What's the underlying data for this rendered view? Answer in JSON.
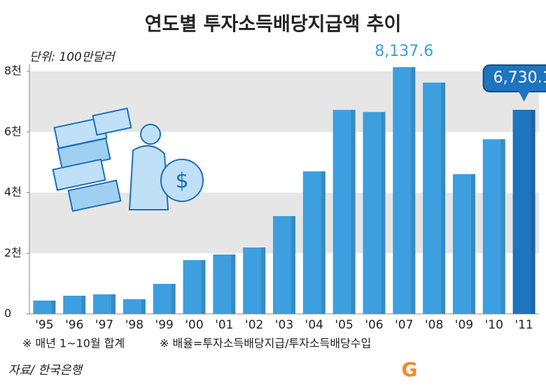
{
  "chart_data": {
    "type": "bar",
    "title": "연도별 투자소득배당지급액 추이",
    "unit": "단위: 100만달러",
    "categories": [
      "'95",
      "'96",
      "'97",
      "'98",
      "'99",
      "'00",
      "'01",
      "'02",
      "'03",
      "'04",
      "'05",
      "'06",
      "'07",
      "'08",
      "'09",
      "'10",
      "'11"
    ],
    "values": [
      440,
      600,
      645,
      484,
      990,
      1774,
      1960,
      2190,
      3226,
      4700,
      6728,
      6659,
      8137.6,
      7627,
      4608,
      5760,
      6730.1
    ],
    "value_labels": [
      null,
      null,
      null,
      null,
      null,
      null,
      null,
      null,
      null,
      null,
      null,
      null,
      "8,137.6",
      null,
      null,
      null,
      "6,730.1"
    ],
    "colors": [
      "#3d9fdf",
      "#3d9fdf",
      "#3d9fdf",
      "#3d9fdf",
      "#3d9fdf",
      "#3d9fdf",
      "#3d9fdf",
      "#3d9fdf",
      "#3d9fdf",
      "#3d9fdf",
      "#3d9fdf",
      "#3d9fdf",
      "#3d9fdf",
      "#3d9fdf",
      "#3d9fdf",
      "#3d9fdf",
      "#1e74bd"
    ],
    "ylim": [
      0,
      8000
    ],
    "yticks": [
      0,
      {
        "value": 2000,
        "label": "2천"
      },
      {
        "value": 4000,
        "label": "4천"
      },
      {
        "value": 6000,
        "label": "6천"
      },
      {
        "value": 8000,
        "label": "8천"
      }
    ],
    "grid": "bands",
    "notes": [
      "※ 매년 1~10월 합계",
      "※ 배율=투자소득배당지급/투자소득배당수입"
    ],
    "source": "자료/ 한국은행"
  }
}
